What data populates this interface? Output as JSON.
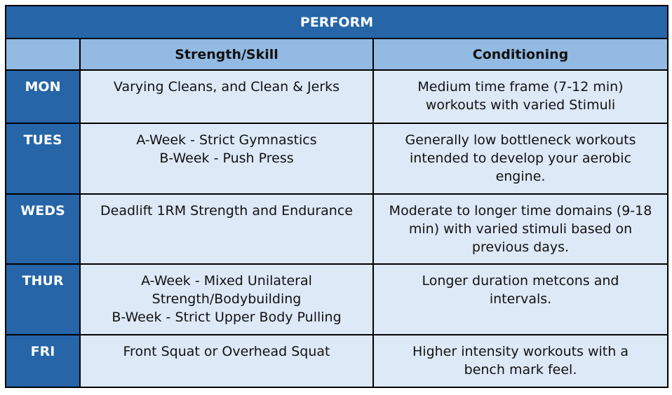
{
  "title": "PERFORM",
  "columns": [
    "",
    "Strength/Skill",
    "Conditioning"
  ],
  "rows": [
    {
      "day": "MON",
      "strength": [
        "Varying Cleans, and Clean & Jerks"
      ],
      "conditioning": [
        "Medium time frame (7-12 min)",
        "workouts with varied Stimuli"
      ]
    },
    {
      "day": "TUES",
      "strength": [
        "A-Week - Strict Gymnastics",
        "B-Week - Push Press"
      ],
      "conditioning": [
        "Generally low bottleneck workouts",
        "intended to develop your aerobic",
        "engine."
      ]
    },
    {
      "day": "WEDS",
      "strength": [
        "Deadlift 1RM Strength and Endurance"
      ],
      "conditioning": [
        "Moderate to longer time domains (9-18",
        "min) with varied stimuli based on",
        "previous days."
      ]
    },
    {
      "day": "THUR",
      "strength": [
        "A-Week -  Mixed Unilateral",
        "Strength/Bodybuilding",
        "B-Week - Strict Upper Body Pulling"
      ],
      "conditioning": [
        "Longer duration metcons and",
        "intervals."
      ]
    },
    {
      "day": "FRI",
      "strength": [
        "Front Squat or Overhead Squat"
      ],
      "conditioning": [
        "Higher intensity workouts with a",
        "bench mark feel."
      ]
    }
  ],
  "colors": {
    "dark": "#2565a8",
    "header": "#92bae2",
    "cell": "#dde9f7"
  }
}
